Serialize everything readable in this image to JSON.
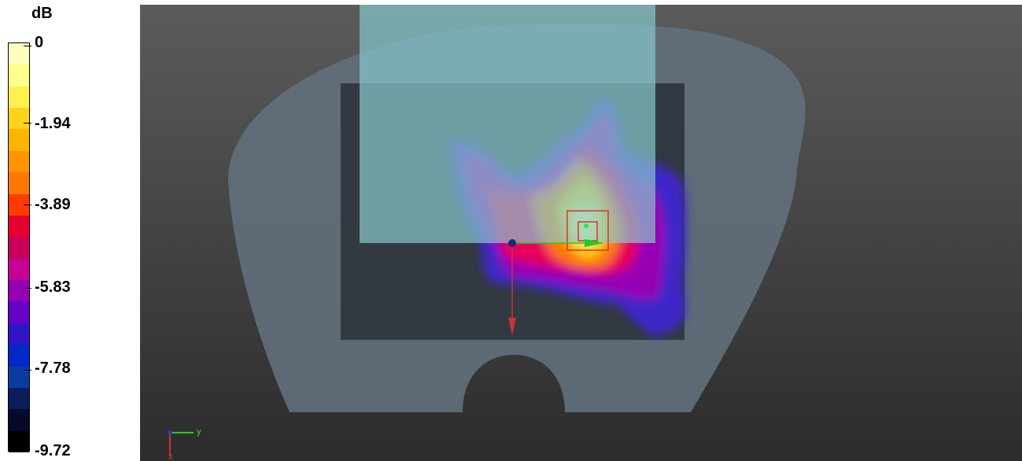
{
  "legend": {
    "unit": "dB",
    "ticks": [
      "0",
      "-1.94",
      "-3.89",
      "-5.83",
      "-7.78",
      "-9.72"
    ],
    "colors": [
      "#FFFFC0",
      "#FFFF8C",
      "#FFF050",
      "#FFD21E",
      "#FFB400",
      "#FF9600",
      "#FF7800",
      "#FF3C00",
      "#E60032",
      "#C8005A",
      "#C80096",
      "#9600B4",
      "#6400C8",
      "#3214C8",
      "#0028C8",
      "#0A3CA0",
      "#0A1E5A",
      "#050A28",
      "#000000"
    ]
  },
  "axes_triad": {
    "y_label": "y",
    "x_label": "x"
  },
  "colors": {
    "background_top": "#5B5B5B",
    "background_bottom": "#2C2C2C",
    "phantom": "#62707C",
    "inner_box": "#2A3038",
    "source_box": "#88C8CC",
    "y_axis_arrow": "#22CC22",
    "x_axis_arrow": "#CC3333",
    "marker": "#E03030"
  }
}
